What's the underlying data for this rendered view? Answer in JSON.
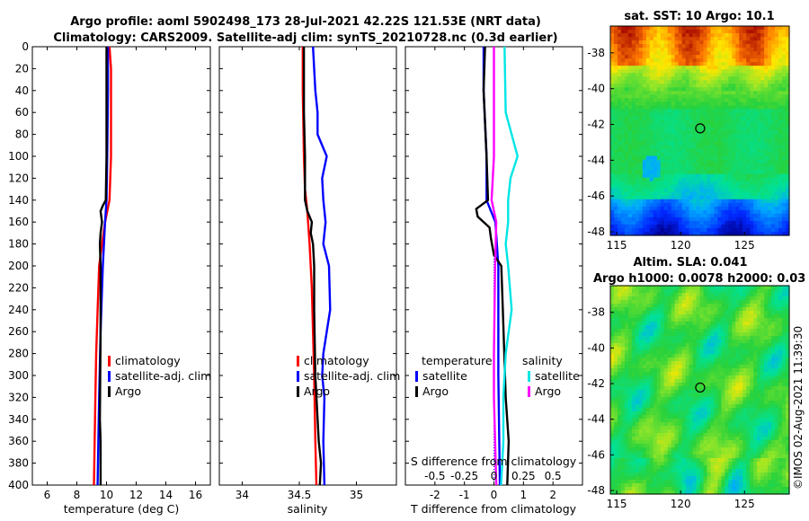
{
  "title_lines": [
    "Argo profile: aoml 5902498_173 28-Jul-2021 42.22S 121.53E (NRT data)",
    "Climatology: CARS2009. Satellite-adj clim: synTS_20210728.nc (0.3d earlier)"
  ],
  "watermark": "©IMOS 02-Aug-2021 11:39:30",
  "chart_data": [
    {
      "type": "line",
      "id": "temperature",
      "xlabel": "temperature (deg C)",
      "ylabel": "",
      "xlim": [
        5,
        17
      ],
      "ylim": [
        0,
        400
      ],
      "y_reversed": true,
      "xticks": [
        6,
        8,
        10,
        12,
        14,
        16
      ],
      "yticks": [
        0,
        20,
        40,
        60,
        80,
        100,
        120,
        140,
        160,
        180,
        200,
        220,
        240,
        260,
        280,
        300,
        320,
        340,
        360,
        380,
        400
      ],
      "legend": {
        "location": "lower-right",
        "entries": [
          "climatology",
          "satellite-adj. clim",
          "Argo"
        ]
      },
      "series": [
        {
          "name": "climatology",
          "color": "#ff0000",
          "depth": [
            0,
            20,
            60,
            100,
            140,
            160,
            180,
            200,
            240,
            280,
            320,
            360,
            400
          ],
          "values": [
            10.2,
            10.3,
            10.3,
            10.3,
            10.2,
            9.9,
            9.7,
            9.5,
            9.4,
            9.3,
            9.25,
            9.2,
            9.15
          ]
        },
        {
          "name": "satellite-adj. clim",
          "color": "#0000ff",
          "depth": [
            0,
            40,
            100,
            140,
            160,
            200,
            260,
            320,
            360,
            400
          ],
          "values": [
            10.1,
            10.1,
            10.05,
            10.0,
            9.9,
            9.75,
            9.6,
            9.5,
            9.45,
            9.4
          ]
        },
        {
          "name": "Argo",
          "color": "#000000",
          "depth": [
            0,
            40,
            100,
            140,
            145,
            150,
            160,
            170,
            180,
            200,
            260,
            340,
            360,
            400
          ],
          "values": [
            10.0,
            10.0,
            10.0,
            9.95,
            9.75,
            9.6,
            9.7,
            9.6,
            9.55,
            9.6,
            9.6,
            9.55,
            9.6,
            9.6
          ]
        }
      ]
    },
    {
      "type": "line",
      "id": "salinity",
      "xlabel": "salinity",
      "ylabel": "",
      "xlim": [
        33.8,
        35.35
      ],
      "ylim": [
        0,
        400
      ],
      "y_reversed": true,
      "xticks": [
        "34",
        "34.5",
        "35"
      ],
      "legend": {
        "location": "lower-right",
        "entries": [
          "climatology",
          "satellite-adj. clim",
          "Argo"
        ]
      },
      "series": [
        {
          "name": "climatology",
          "color": "#ff0000",
          "depth": [
            0,
            40,
            100,
            130,
            150,
            180,
            220,
            300,
            360,
            400
          ],
          "values": [
            34.53,
            34.53,
            34.54,
            34.55,
            34.57,
            34.59,
            34.61,
            34.63,
            34.64,
            34.65
          ]
        },
        {
          "name": "satellite-adj. clim",
          "color": "#0000ff",
          "depth": [
            0,
            40,
            60,
            80,
            100,
            120,
            140,
            160,
            180,
            200,
            240,
            280,
            300,
            320,
            360,
            400
          ],
          "values": [
            34.62,
            34.64,
            34.66,
            34.66,
            34.74,
            34.7,
            34.71,
            34.73,
            34.71,
            34.76,
            34.77,
            34.71,
            34.7,
            34.72,
            34.71,
            34.72
          ]
        },
        {
          "name": "Argo",
          "color": "#000000",
          "depth": [
            0,
            60,
            100,
            140,
            150,
            160,
            170,
            180,
            200,
            240,
            300,
            360,
            380,
            400
          ],
          "values": [
            34.54,
            34.54,
            34.55,
            34.55,
            34.57,
            34.61,
            34.6,
            34.62,
            34.63,
            34.63,
            34.64,
            34.67,
            34.69,
            34.68
          ]
        }
      ]
    },
    {
      "type": "line",
      "id": "difference",
      "xlabel": "T difference from climatology",
      "top_label": "S difference from climatology",
      "xlim": [
        -3,
        3
      ],
      "ylim": [
        0,
        400
      ],
      "y_reversed": true,
      "xticks": [
        "-2",
        "-1",
        "0",
        "1",
        "2"
      ],
      "top_ticks": [
        "-0.5",
        "-0.25",
        "0",
        "0.25",
        "0.5"
      ],
      "legend": {
        "temperature_heading": "temperature",
        "salinity_heading": "salinity",
        "temperature_entries": [
          "satellite",
          "Argo"
        ],
        "salinity_entries": [
          "satellite",
          "Argo"
        ]
      },
      "series": [
        {
          "name": "T satellite",
          "color": "#0000ff",
          "depth": [
            0,
            40,
            100,
            140,
            160,
            200,
            240,
            300,
            400
          ],
          "values": [
            -0.35,
            -0.35,
            -0.25,
            -0.25,
            0.05,
            0.15,
            0.15,
            0.15,
            0.2
          ]
        },
        {
          "name": "T Argo",
          "color": "#000000",
          "depth": [
            0,
            40,
            100,
            140,
            148,
            155,
            165,
            175,
            190,
            200,
            240,
            280,
            320,
            360,
            400
          ],
          "values": [
            -0.3,
            -0.35,
            -0.25,
            -0.2,
            -0.6,
            -0.55,
            -0.15,
            -0.1,
            0.0,
            0.25,
            0.3,
            0.35,
            0.4,
            0.5,
            0.45
          ]
        },
        {
          "name": "S satellite",
          "color": "#00e5e5",
          "depth": [
            0,
            60,
            80,
            100,
            120,
            140,
            160,
            180,
            200,
            240,
            280,
            320,
            360,
            400
          ],
          "values": [
            0.09,
            0.1,
            0.15,
            0.2,
            0.14,
            0.12,
            0.12,
            0.1,
            0.12,
            0.15,
            0.1,
            0.08,
            0.08,
            0.06
          ]
        },
        {
          "name": "S Argo",
          "color": "#ff00ff",
          "depth": [
            0,
            100,
            140,
            150,
            160,
            200,
            280,
            320,
            400
          ],
          "values": [
            0.0,
            0.0,
            -0.02,
            0.0,
            0.02,
            0.01,
            0.0,
            0.0,
            0.02
          ]
        }
      ]
    },
    {
      "type": "heatmap",
      "id": "sst_map",
      "title": "sat. SST: 10 Argo: 10.1",
      "xlim": [
        114.5,
        128.5
      ],
      "ylim": [
        -48.2,
        -36.5
      ],
      "xticks": [
        "115",
        "120",
        "125"
      ],
      "yticks": [
        "-38",
        "-40",
        "-42",
        "-44",
        "-46",
        "-48"
      ],
      "marker": {
        "lon": 121.53,
        "lat": -42.22
      }
    },
    {
      "type": "heatmap",
      "id": "sla_map",
      "title": "Altim. SLA: 0.041",
      "subtitle": "Argo h1000: 0.0078 h2000: 0.03",
      "xlim": [
        114.5,
        128.5
      ],
      "ylim": [
        -48.2,
        -36.5
      ],
      "xticks": [
        "115",
        "120",
        "125"
      ],
      "yticks": [
        "-38",
        "-40",
        "-42",
        "-44",
        "-46",
        "-48"
      ],
      "marker": {
        "lon": 121.53,
        "lat": -42.22
      }
    }
  ]
}
